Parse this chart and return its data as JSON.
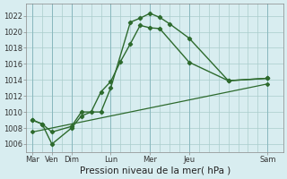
{
  "background_color": "#cce8ec",
  "grid_color": "#b0d0d8",
  "plot_bg": "#d8edf0",
  "line_color": "#2d6a2d",
  "xlabel": "Pression niveau de la mer( hPa )",
  "ylim": [
    1005.0,
    1023.5
  ],
  "yticks": [
    1006,
    1008,
    1010,
    1012,
    1014,
    1016,
    1018,
    1020,
    1022
  ],
  "x_labels": [
    "Mar",
    "Ven",
    "Dim",
    "Lun",
    "Mer",
    "Jeu",
    "Sam"
  ],
  "x_tick_pos": [
    0,
    1,
    2,
    4,
    6,
    8,
    12
  ],
  "xlim": [
    -0.3,
    12.8
  ],
  "series1_x": [
    0,
    0.5,
    1.0,
    2.0,
    2.5,
    3.0,
    3.5,
    4.0,
    4.5,
    5.0,
    5.5,
    6.0,
    6.5,
    8.0,
    10.0,
    12.0
  ],
  "series1_y": [
    1009.0,
    1008.5,
    1006.0,
    1008.0,
    1009.5,
    1010.0,
    1012.5,
    1013.8,
    1016.3,
    1018.5,
    1020.8,
    1020.5,
    1020.4,
    1016.2,
    1013.9,
    1014.2
  ],
  "series2_x": [
    0,
    0.5,
    1.0,
    2.0,
    2.5,
    3.5,
    4.0,
    5.0,
    5.5,
    6.0,
    6.5,
    7.0,
    8.0,
    10.0,
    12.0
  ],
  "series2_y": [
    1009.0,
    1008.5,
    1007.5,
    1008.2,
    1010.0,
    1010.0,
    1013.0,
    1021.2,
    1021.7,
    1022.3,
    1021.8,
    1021.0,
    1019.2,
    1013.9,
    1014.2
  ],
  "series3_x": [
    0,
    12.0
  ],
  "series3_y": [
    1007.5,
    1013.5
  ],
  "tick_fontsize": 6.0,
  "label_fontsize": 7.5
}
